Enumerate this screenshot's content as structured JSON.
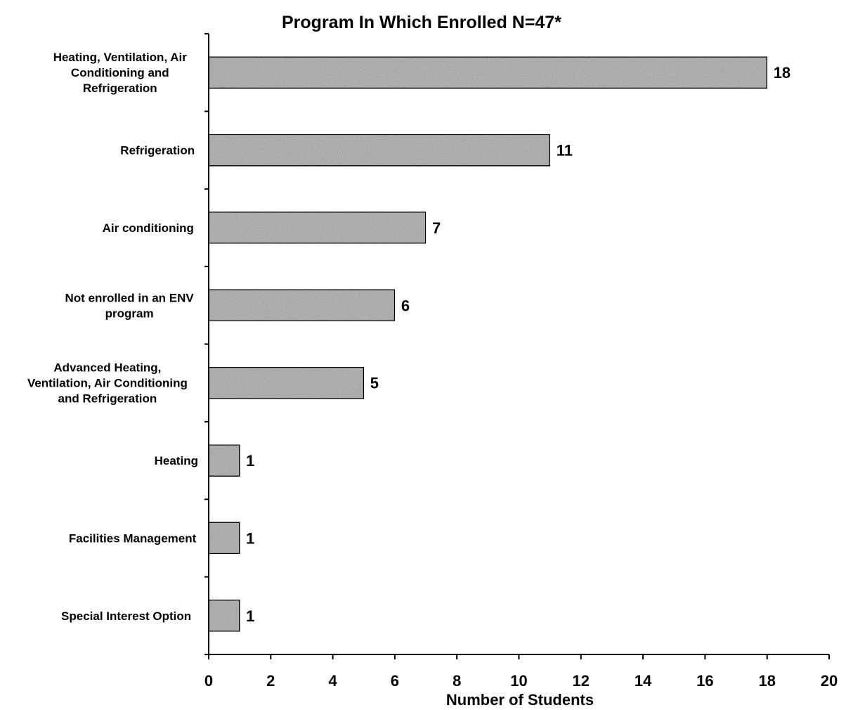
{
  "chart_data": {
    "type": "bar",
    "orientation": "horizontal",
    "title": "Program In Which Enrolled  N=47*",
    "xlabel": "Number of Students",
    "ylabel": "",
    "xlim": [
      0,
      20
    ],
    "x_ticks": [
      "0",
      "2",
      "4",
      "6",
      "8",
      "10",
      "12",
      "14",
      "16",
      "18",
      "20"
    ],
    "categories": [
      [
        "Heating, Ventilation, Air",
        "Conditioning and",
        "Refrigeration"
      ],
      [
        "Refrigeration"
      ],
      [
        "Air conditioning"
      ],
      [
        "Not enrolled in an ENV",
        "program"
      ],
      [
        "Advanced Heating,",
        "Ventilation, Air Conditioning",
        "and Refrigeration"
      ],
      [
        "Heating"
      ],
      [
        "Facilities Management"
      ],
      [
        "Special Interest Option"
      ]
    ],
    "values": [
      18,
      11,
      7,
      6,
      5,
      1,
      1,
      1
    ],
    "data_labels": [
      "18",
      "11",
      "7",
      "6",
      "5",
      "1",
      "1",
      "1"
    ],
    "grid": false,
    "legend": "none",
    "colors": {
      "bar_fill": "#b8b8b8",
      "bar_stroke": "#000000",
      "axis": "#000000",
      "text": "#000000"
    }
  }
}
